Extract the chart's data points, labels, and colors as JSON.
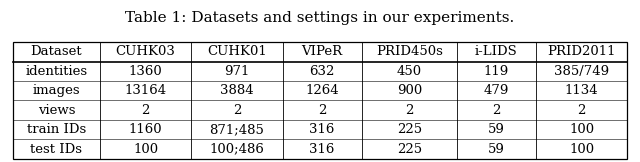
{
  "title": "Table 1: Datasets and settings in our experiments.",
  "columns": [
    "Dataset",
    "CUHK03",
    "CUHK01",
    "VIPeR",
    "PRID450s",
    "i-LIDS",
    "PRID2011"
  ],
  "rows": [
    [
      "identities",
      "1360",
      "971",
      "632",
      "450",
      "119",
      "385/749"
    ],
    [
      "images",
      "13164",
      "3884",
      "1264",
      "900",
      "479",
      "1134"
    ],
    [
      "views",
      "2",
      "2",
      "2",
      "2",
      "2",
      "2"
    ],
    [
      "train IDs",
      "1160",
      "871;485",
      "316",
      "225",
      "59",
      "100"
    ],
    [
      "test IDs",
      "100",
      "100;486",
      "316",
      "225",
      "59",
      "100"
    ]
  ],
  "col_widths_rel": [
    1.05,
    1.1,
    1.1,
    0.95,
    1.15,
    0.95,
    1.1
  ],
  "background_color": "#ffffff",
  "title_fontsize": 11,
  "cell_fontsize": 9.5,
  "header_fontsize": 9.5
}
